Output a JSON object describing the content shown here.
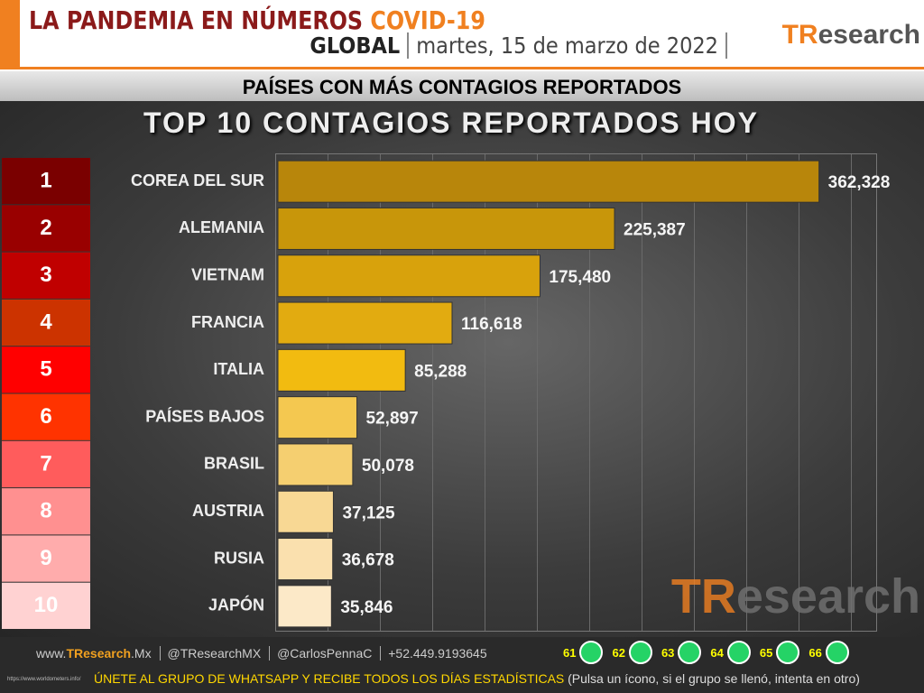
{
  "header": {
    "title": "LA PANDEMIA EN NÚMEROS",
    "title_accent": "COVID-19",
    "scope": "GLOBAL",
    "date": "martes, 15 de marzo de 2022",
    "logo": [
      "TR",
      "esearch"
    ]
  },
  "section": "PAÍSES CON MÁS CONTAGIOS REPORTADOS",
  "ranks": [
    1,
    2,
    3,
    4,
    5,
    6,
    7,
    8,
    9,
    10
  ],
  "rank_colors": [
    "#7a0000",
    "#990000",
    "#c00000",
    "#cc3300",
    "#ff0000",
    "#ff3300",
    "#ff5c5c",
    "#ff9090",
    "#ffacac",
    "#ffd2d2"
  ],
  "chart_data": {
    "type": "bar",
    "orientation": "horizontal",
    "title": "TOP 10 CONTAGIOS REPORTADOS HOY",
    "categories": [
      "COREA DEL SUR",
      "ALEMANIA",
      "VIETNAM",
      "FRANCIA",
      "ITALIA",
      "PAÍSES BAJOS",
      "BRASIL",
      "AUSTRIA",
      "RUSIA",
      "JAPÓN"
    ],
    "values": [
      362328,
      225387,
      175480,
      116618,
      85288,
      52897,
      50078,
      37125,
      36678,
      35846
    ],
    "value_labels": [
      "362,328",
      "225,387",
      "175,480",
      "116,618",
      "85,288",
      "52,897",
      "50,078",
      "37,125",
      "36,678",
      "35,846"
    ],
    "colors": [
      "#b8860b",
      "#c8960a",
      "#d8a20c",
      "#e2ab10",
      "#f2bb10",
      "#f4c850",
      "#f5cf70",
      "#f8d894",
      "#fae0ae",
      "#fce9c8"
    ],
    "xlim": [
      0,
      400000
    ]
  },
  "footer": {
    "web_prefix": "www.",
    "web_brand": "TResearch",
    "web_suffix": ".Mx",
    "twitter": "@TResearchMX",
    "twitter2": "@CarlosPennaC",
    "phone": "+52.449.9193645",
    "groups": [
      61,
      62,
      63,
      64,
      65,
      66
    ],
    "cta": "ÚNETE AL GRUPO DE WHATSAPP Y RECIBE TODOS LOS DÍAS ESTADÍSTICAS",
    "cta_note": "(Pulsa un ícono, si el grupo se llenó, intenta en otro)",
    "source": "https://www.worldometers.info/"
  }
}
